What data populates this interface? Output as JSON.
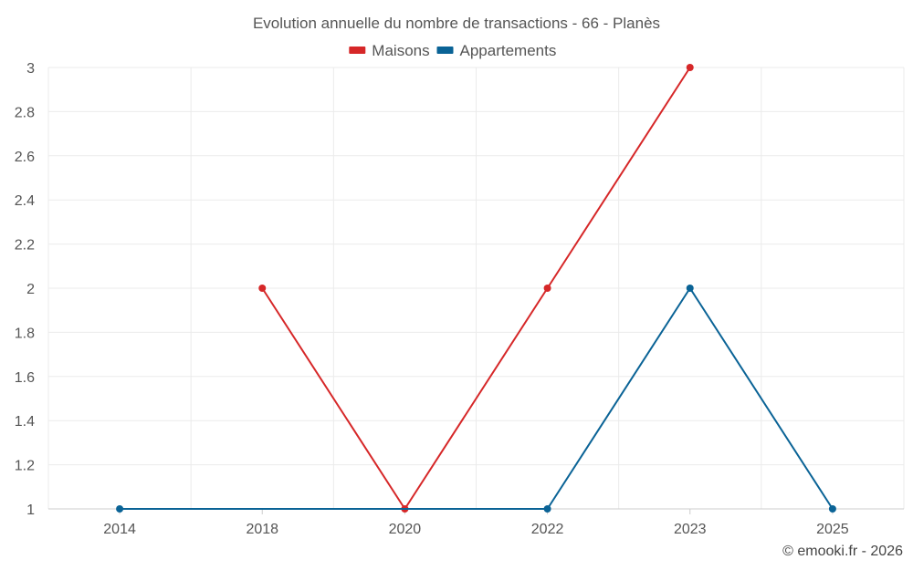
{
  "chart_data": {
    "type": "line",
    "title": "Evolution annuelle du nombre de transactions - 66 - Planès",
    "categories": [
      "2014",
      "2018",
      "2020",
      "2022",
      "2023",
      "2025"
    ],
    "series": [
      {
        "name": "Maisons",
        "color": "#d62728",
        "values": [
          null,
          2,
          1,
          2,
          3,
          null
        ]
      },
      {
        "name": "Appartements",
        "color": "#0a6396",
        "values": [
          1,
          null,
          null,
          1,
          2,
          1
        ]
      }
    ],
    "yticks": [
      "1",
      "1.2",
      "1.4",
      "1.6",
      "1.8",
      "2",
      "2.2",
      "2.4",
      "2.6",
      "2.8",
      "3"
    ],
    "ylim": [
      1,
      3
    ],
    "grid": true,
    "legend_position": "top-center",
    "credit": "© emooki.fr - 2026"
  }
}
